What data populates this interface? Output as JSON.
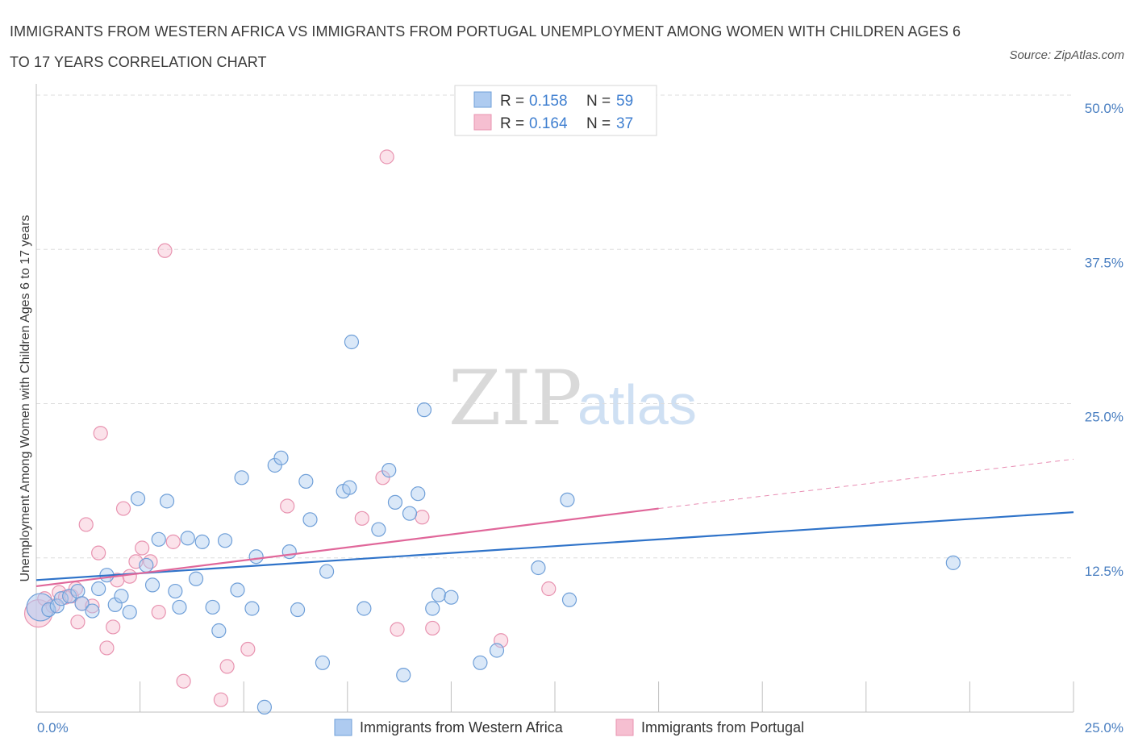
{
  "title": "IMMIGRANTS FROM WESTERN AFRICA VS IMMIGRANTS FROM PORTUGAL UNEMPLOYMENT AMONG WOMEN WITH CHILDREN AGES 6 TO 17 YEARS CORRELATION CHART",
  "source": "Source: ZipAtlas.com",
  "watermark": {
    "zip": "ZIP",
    "atlas": "atlas"
  },
  "colors": {
    "blue_fill": "#aecbf0",
    "blue_stroke": "#6f9fd8",
    "blue_line": "#2f73c9",
    "pink_fill": "#f6bfd1",
    "pink_stroke": "#e893b0",
    "pink_line": "#e0679a",
    "grid": "#dddddd",
    "tick_text": "#4a7fc1"
  },
  "legend_top": [
    {
      "r_label": "R = ",
      "r_value": "0.158",
      "n_label": "N = ",
      "n_value": "59",
      "color": "blue"
    },
    {
      "r_label": "R = ",
      "r_value": "0.164",
      "n_label": "N = ",
      "n_value": "37",
      "color": "pink"
    }
  ],
  "legend_bottom": [
    {
      "label": "Immigrants from Western Africa",
      "color": "blue"
    },
    {
      "label": "Immigrants from Portugal",
      "color": "pink"
    }
  ],
  "chart_data": {
    "type": "scatter",
    "title": "IMMIGRANTS FROM WESTERN AFRICA VS IMMIGRANTS FROM PORTUGAL UNEMPLOYMENT AMONG WOMEN WITH CHILDREN AGES 6 TO 17 YEARS CORRELATION CHART",
    "xlabel": "",
    "ylabel": "Unemployment Among Women with Children Ages 6 to 17 years",
    "xlim": [
      0,
      25
    ],
    "ylim": [
      0,
      50
    ],
    "x_tick_labels": [
      "0.0%",
      "25.0%"
    ],
    "y_ticks": [
      12.5,
      25.0,
      37.5,
      50.0
    ],
    "y_tick_labels": [
      "12.5%",
      "25.0%",
      "37.5%",
      "50.0%"
    ],
    "grid": "horizontal dashed",
    "legend_placement": "top-center and bottom",
    "series": [
      {
        "name": "Immigrants from Western Africa",
        "color": "blue",
        "r": 0.158,
        "n": 59,
        "trend": {
          "x": [
            0,
            25
          ],
          "y": [
            10.7,
            16.2
          ]
        },
        "points": [
          {
            "x": 0.1,
            "y": 8.5,
            "big": true
          },
          {
            "x": 0.3,
            "y": 8.3
          },
          {
            "x": 0.5,
            "y": 8.6
          },
          {
            "x": 0.6,
            "y": 9.2
          },
          {
            "x": 0.8,
            "y": 9.4
          },
          {
            "x": 1.0,
            "y": 9.8
          },
          {
            "x": 1.1,
            "y": 8.8
          },
          {
            "x": 1.35,
            "y": 8.2
          },
          {
            "x": 1.5,
            "y": 10.0
          },
          {
            "x": 1.7,
            "y": 11.1
          },
          {
            "x": 1.9,
            "y": 8.7
          },
          {
            "x": 2.05,
            "y": 9.4
          },
          {
            "x": 2.25,
            "y": 8.1
          },
          {
            "x": 2.45,
            "y": 17.3
          },
          {
            "x": 2.65,
            "y": 11.9
          },
          {
            "x": 2.8,
            "y": 10.3
          },
          {
            "x": 2.95,
            "y": 14.0
          },
          {
            "x": 3.15,
            "y": 17.1
          },
          {
            "x": 3.35,
            "y": 9.8
          },
          {
            "x": 3.45,
            "y": 8.5
          },
          {
            "x": 3.65,
            "y": 14.1
          },
          {
            "x": 3.85,
            "y": 10.8
          },
          {
            "x": 4.0,
            "y": 13.8
          },
          {
            "x": 4.25,
            "y": 8.5
          },
          {
            "x": 4.4,
            "y": 6.6
          },
          {
            "x": 4.55,
            "y": 13.9
          },
          {
            "x": 4.85,
            "y": 9.9
          },
          {
            "x": 4.95,
            "y": 19.0
          },
          {
            "x": 5.2,
            "y": 8.4
          },
          {
            "x": 5.3,
            "y": 12.6
          },
          {
            "x": 5.5,
            "y": 0.4
          },
          {
            "x": 5.75,
            "y": 20.0
          },
          {
            "x": 5.9,
            "y": 20.6
          },
          {
            "x": 6.1,
            "y": 13.0
          },
          {
            "x": 6.3,
            "y": 8.3
          },
          {
            "x": 6.5,
            "y": 18.7
          },
          {
            "x": 6.6,
            "y": 15.6
          },
          {
            "x": 6.9,
            "y": 4.0
          },
          {
            "x": 7.0,
            "y": 11.4
          },
          {
            "x": 7.4,
            "y": 17.9
          },
          {
            "x": 7.55,
            "y": 18.2
          },
          {
            "x": 7.6,
            "y": 30.0
          },
          {
            "x": 7.9,
            "y": 8.4
          },
          {
            "x": 8.25,
            "y": 14.8
          },
          {
            "x": 8.5,
            "y": 19.6
          },
          {
            "x": 8.65,
            "y": 17.0
          },
          {
            "x": 8.85,
            "y": 3.0
          },
          {
            "x": 9.0,
            "y": 16.1
          },
          {
            "x": 9.2,
            "y": 17.7
          },
          {
            "x": 9.35,
            "y": 24.5
          },
          {
            "x": 9.55,
            "y": 8.4
          },
          {
            "x": 9.7,
            "y": 9.5
          },
          {
            "x": 10.0,
            "y": 9.3
          },
          {
            "x": 10.7,
            "y": 4.0
          },
          {
            "x": 11.1,
            "y": 5.0
          },
          {
            "x": 12.1,
            "y": 11.7
          },
          {
            "x": 12.85,
            "y": 9.1
          },
          {
            "x": 12.8,
            "y": 17.2
          },
          {
            "x": 22.1,
            "y": 12.1
          }
        ]
      },
      {
        "name": "Immigrants from Portugal",
        "color": "pink",
        "r": 0.164,
        "n": 37,
        "trend": {
          "x": [
            0,
            15
          ],
          "y": [
            10.2,
            16.5
          ]
        },
        "trend_dashed": {
          "x": [
            15,
            25
          ],
          "y": [
            16.5,
            20.5
          ]
        },
        "points": [
          {
            "x": 0.05,
            "y": 8.0,
            "big": true
          },
          {
            "x": 0.2,
            "y": 9.2
          },
          {
            "x": 0.4,
            "y": 8.6
          },
          {
            "x": 0.55,
            "y": 9.7
          },
          {
            "x": 0.7,
            "y": 9.3
          },
          {
            "x": 0.85,
            "y": 9.4
          },
          {
            "x": 1.0,
            "y": 7.3
          },
          {
            "x": 1.1,
            "y": 8.8
          },
          {
            "x": 1.2,
            "y": 15.2
          },
          {
            "x": 1.35,
            "y": 8.6
          },
          {
            "x": 1.5,
            "y": 12.9
          },
          {
            "x": 1.55,
            "y": 22.6
          },
          {
            "x": 1.7,
            "y": 5.2
          },
          {
            "x": 1.85,
            "y": 6.9
          },
          {
            "x": 1.95,
            "y": 10.7
          },
          {
            "x": 2.1,
            "y": 16.5
          },
          {
            "x": 2.25,
            "y": 11.0
          },
          {
            "x": 2.4,
            "y": 12.2
          },
          {
            "x": 2.55,
            "y": 13.3
          },
          {
            "x": 2.75,
            "y": 12.2
          },
          {
            "x": 2.95,
            "y": 8.1
          },
          {
            "x": 3.1,
            "y": 37.4
          },
          {
            "x": 3.3,
            "y": 13.8
          },
          {
            "x": 3.55,
            "y": 2.5
          },
          {
            "x": 4.45,
            "y": 1.0
          },
          {
            "x": 4.6,
            "y": 3.7
          },
          {
            "x": 5.1,
            "y": 5.1
          },
          {
            "x": 6.05,
            "y": 16.7
          },
          {
            "x": 7.85,
            "y": 15.7
          },
          {
            "x": 8.35,
            "y": 19.0
          },
          {
            "x": 8.45,
            "y": 45.0
          },
          {
            "x": 8.7,
            "y": 6.7
          },
          {
            "x": 9.3,
            "y": 15.8
          },
          {
            "x": 9.55,
            "y": 6.8
          },
          {
            "x": 11.2,
            "y": 5.8
          },
          {
            "x": 12.35,
            "y": 10.0
          },
          {
            "x": 0.95,
            "y": 10.0
          }
        ]
      }
    ]
  }
}
